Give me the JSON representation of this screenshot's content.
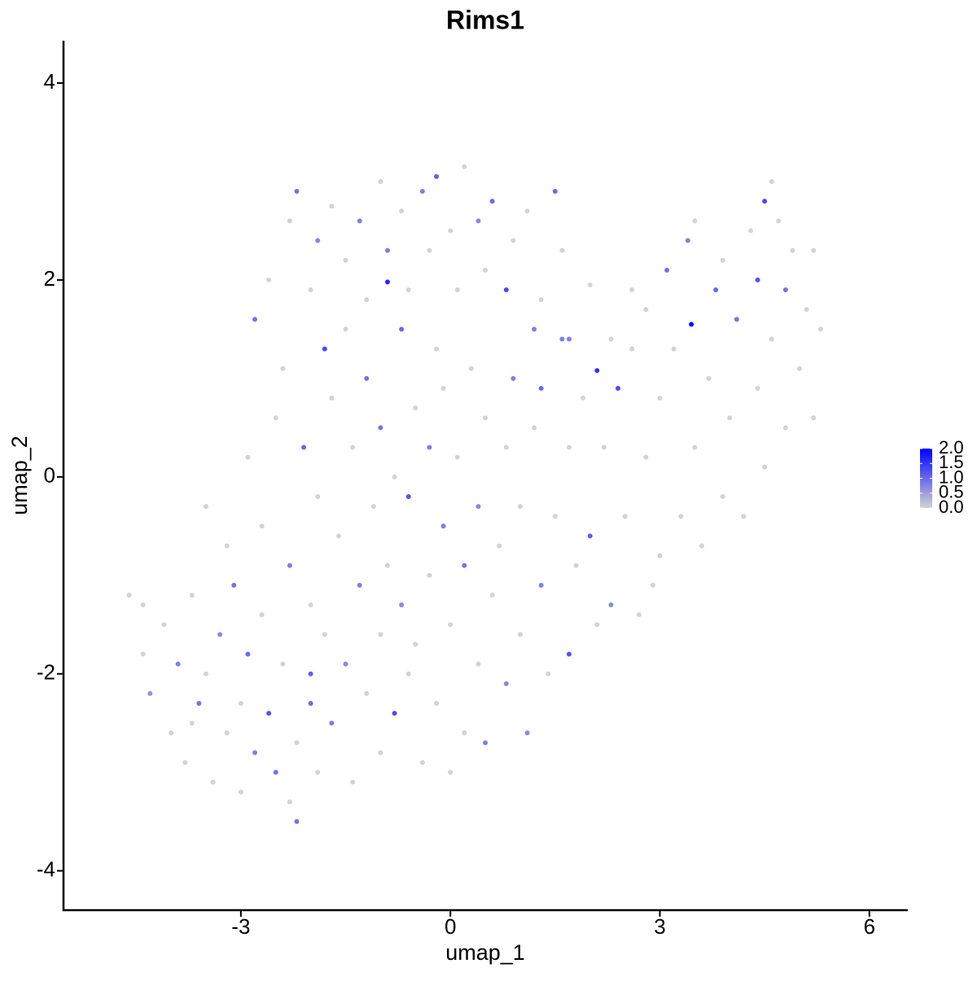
{
  "chart_data": {
    "type": "scatter",
    "title": "Rims1",
    "xlabel": "umap_1",
    "ylabel": "umap_2",
    "xlim": [
      -5.54,
      6.55
    ],
    "ylim": [
      -4.4,
      4.43
    ],
    "xticks": [
      -3,
      0,
      3,
      6
    ],
    "yticks": [
      -4,
      -2,
      0,
      2,
      4
    ],
    "color_low": "#d3d3d3",
    "color_high": "#0000ff",
    "colorlim": [
      0,
      2
    ],
    "colorticks": [
      {
        "value": 0,
        "label": "0.0"
      },
      {
        "value": 0.5,
        "label": "0.5"
      },
      {
        "value": 1,
        "label": "1.0"
      },
      {
        "value": 1.5,
        "label": "1.5"
      },
      {
        "value": 2,
        "label": "2.0"
      }
    ],
    "x": [
      -4.6,
      -4.4,
      -4.3,
      -4.1,
      -4.0,
      -3.9,
      -3.8,
      -3.7,
      -3.6,
      -3.5,
      -3.5,
      -3.4,
      -3.3,
      -3.2,
      -3.2,
      -3.1,
      -3.0,
      -3.0,
      -2.9,
      -2.9,
      -2.8,
      -2.7,
      -2.7,
      -2.6,
      -2.5,
      -2.5,
      -2.4,
      -2.3,
      -2.3,
      -2.2,
      -2.2,
      -2.1,
      -2.0,
      -2.0,
      -1.9,
      -1.9,
      -1.8,
      -1.8,
      -1.7,
      -1.7,
      -1.6,
      -1.5,
      -1.5,
      -1.4,
      -1.4,
      -1.3,
      -1.2,
      -1.2,
      -1.1,
      -1.0,
      -1.0,
      -1.0,
      -0.9,
      -0.9,
      -0.8,
      -0.8,
      -0.7,
      -0.7,
      -0.6,
      -0.6,
      -0.5,
      -0.5,
      -0.4,
      -0.3,
      -0.3,
      -0.2,
      -0.2,
      -0.1,
      -0.1,
      0.0,
      0.0,
      0.1,
      0.2,
      0.2,
      0.3,
      0.4,
      0.4,
      0.5,
      0.5,
      0.6,
      0.7,
      0.8,
      0.8,
      0.9,
      1.0,
      1.0,
      1.1,
      1.2,
      1.3,
      1.3,
      1.4,
      1.5,
      1.6,
      1.7,
      1.7,
      1.8,
      1.9,
      2.0,
      2.1,
      2.1,
      2.2,
      2.3,
      2.4,
      2.5,
      2.6,
      2.7,
      2.8,
      2.8,
      2.9,
      3.0,
      3.0,
      3.1,
      3.2,
      3.3,
      3.4,
      3.45,
      3.5,
      3.6,
      3.7,
      3.8,
      3.9,
      3.9,
      4.0,
      4.1,
      4.2,
      4.3,
      4.4,
      4.4,
      4.5,
      4.5,
      4.6,
      4.7,
      4.8,
      4.8,
      4.9,
      5.0,
      5.1,
      5.2,
      5.2,
      5.3,
      -2.8,
      -2.6,
      -2.4,
      -2.3,
      -2.2,
      -2.0,
      -1.9,
      -1.7,
      -1.5,
      -1.3,
      -1.2,
      -1.0,
      -0.9,
      -0.7,
      -0.6,
      -0.4,
      -0.3,
      -0.2,
      0.0,
      0.1,
      0.2,
      0.4,
      0.5,
      0.6,
      0.8,
      0.9,
      1.1,
      1.2,
      1.5,
      1.6,
      1.7,
      1.3,
      2.0,
      2.3,
      2.6,
      4.6,
      3.5,
      -3.7,
      -2.0,
      -4.4
    ],
    "y": [
      -1.2,
      -1.8,
      -2.2,
      -1.5,
      -2.6,
      -1.9,
      -2.9,
      -1.2,
      -2.3,
      -0.3,
      -2.0,
      -3.1,
      -1.6,
      -2.6,
      -0.7,
      -1.1,
      -2.3,
      -3.2,
      0.2,
      -1.8,
      -2.8,
      -0.5,
      -1.4,
      -2.4,
      -3.0,
      0.6,
      -1.9,
      -0.9,
      -3.3,
      -3.5,
      -2.7,
      0.3,
      -1.3,
      -2.0,
      -0.2,
      -3.0,
      1.3,
      -1.6,
      0.8,
      -2.5,
      -0.6,
      -1.9,
      1.5,
      0.3,
      -3.1,
      -1.1,
      -2.2,
      1.0,
      -0.3,
      0.5,
      -2.8,
      -1.6,
      1.98,
      -0.9,
      -2.4,
      0.0,
      -1.3,
      1.5,
      -0.2,
      -2.0,
      0.7,
      -1.7,
      -2.9,
      0.3,
      -1.0,
      1.3,
      -2.3,
      -0.5,
      0.9,
      -1.5,
      -3.0,
      0.2,
      -0.9,
      -2.6,
      1.1,
      -1.9,
      -0.3,
      0.6,
      -2.7,
      -1.2,
      -0.7,
      -2.1,
      0.3,
      1.0,
      -1.6,
      -0.3,
      -2.6,
      0.5,
      -1.1,
      0.9,
      -2.0,
      -0.4,
      1.4,
      -1.8,
      0.3,
      -0.9,
      0.8,
      -0.6,
      1.08,
      -1.5,
      0.3,
      -1.3,
      0.9,
      -0.4,
      1.3,
      -1.4,
      0.2,
      1.7,
      -1.1,
      0.8,
      -0.8,
      2.1,
      1.3,
      -0.4,
      2.4,
      1.55,
      0.3,
      -0.7,
      1.0,
      1.9,
      2.2,
      -0.2,
      0.6,
      1.6,
      -0.4,
      2.5,
      0.9,
      2.0,
      0.1,
      2.8,
      1.4,
      2.6,
      0.5,
      1.9,
      2.3,
      1.1,
      1.7,
      2.3,
      0.6,
      1.5,
      1.6,
      2.0,
      1.1,
      2.6,
      2.9,
      1.9,
      2.4,
      2.75,
      2.2,
      2.6,
      1.8,
      3.0,
      2.3,
      2.7,
      1.9,
      2.9,
      2.3,
      3.05,
      2.5,
      1.9,
      3.15,
      2.6,
      2.1,
      2.8,
      1.9,
      2.4,
      2.7,
      1.5,
      2.9,
      2.3,
      1.4,
      1.8,
      1.95,
      1.4,
      1.9,
      3.0,
      2.6,
      -2.5,
      -2.3,
      -1.3
    ],
    "values": [
      0,
      0,
      0.6,
      0,
      0,
      0.8,
      0,
      0,
      0.9,
      0,
      0,
      0,
      0.7,
      0,
      0,
      0.9,
      0,
      0,
      0,
      1.0,
      0.8,
      0,
      0,
      1.2,
      0.9,
      0,
      0,
      0.8,
      0,
      0.9,
      0,
      1.0,
      0,
      1.1,
      0,
      0,
      1.3,
      0,
      0,
      0.8,
      0,
      0.7,
      0,
      0,
      0,
      0.8,
      0,
      0.9,
      0,
      0.9,
      0,
      0,
      1.6,
      0,
      1.3,
      0,
      0.7,
      1.0,
      1.2,
      0,
      0,
      0,
      0,
      0.8,
      0,
      0,
      0,
      0.8,
      0,
      0,
      0,
      0,
      0.9,
      0,
      0,
      0,
      0.7,
      0,
      0.8,
      0,
      0,
      0.7,
      0,
      0.8,
      0,
      0,
      0.7,
      0,
      0.8,
      1.0,
      0,
      0,
      0.8,
      1.2,
      0,
      0,
      0,
      1.1,
      1.5,
      0,
      0,
      0.7,
      1.3,
      0,
      0,
      0,
      0,
      0,
      0,
      0,
      0,
      0.9,
      0,
      0,
      0.8,
      1.9,
      0,
      0,
      0,
      1.0,
      0,
      0,
      0,
      0.9,
      0,
      0,
      0,
      1.2,
      0,
      1.3,
      0,
      0,
      0,
      0.9,
      0,
      0,
      0,
      0,
      0,
      0,
      0.9,
      0,
      0,
      0,
      0.9,
      0,
      0.7,
      0,
      0,
      0.8,
      0,
      0,
      0.8,
      0,
      0,
      0.8,
      0,
      1.1,
      0,
      0,
      0,
      0.7,
      0,
      1.0,
      1.3,
      0,
      0,
      0.8,
      1.0,
      0,
      0.8,
      0,
      0,
      0,
      0,
      0,
      0,
      0,
      1.0,
      0
    ]
  }
}
